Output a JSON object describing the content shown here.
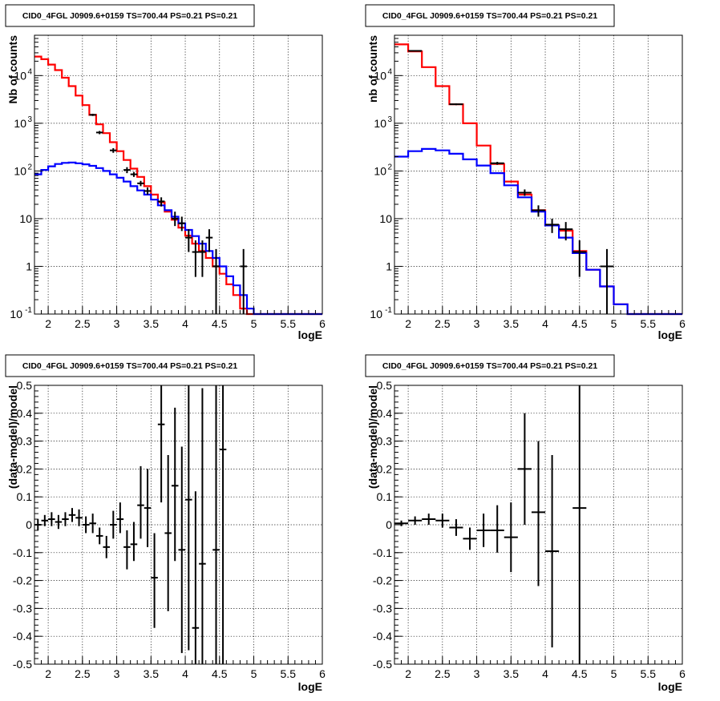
{
  "chart_data": [
    {
      "type": "histogram",
      "title": "CID0_4FGL J0909.6+0159 TS=700.44 PS=0.21 PS=0.21",
      "xlabel": "logE",
      "ylabel": "Nb of counts",
      "xlim": [
        1.8,
        6.0
      ],
      "ylim": [
        0.1,
        70000
      ],
      "yscale": "log",
      "grid": true,
      "x_ticks": [
        "2",
        "2.5",
        "3",
        "3.5",
        "4",
        "4.5",
        "5",
        "5.5",
        "6"
      ],
      "y_ticks": [
        "10^-1",
        "1",
        "10",
        "10^2",
        "10^3",
        "10^4"
      ],
      "bin_edges": [
        1.8,
        1.9,
        2.0,
        2.1,
        2.2,
        2.3,
        2.4,
        2.5,
        2.6,
        2.7,
        2.8,
        2.9,
        3.0,
        3.1,
        3.2,
        3.3,
        3.4,
        3.5,
        3.6,
        3.7,
        3.8,
        3.9,
        4.0,
        4.1,
        4.2,
        4.3,
        4.4,
        4.5,
        4.6,
        4.7,
        4.8,
        4.9,
        5.0,
        5.1,
        5.2,
        5.3,
        5.4,
        5.5,
        5.6,
        5.7,
        5.8,
        5.9,
        6.0
      ],
      "series": [
        {
          "color": "#ff0000",
          "values": [
            25000,
            22000,
            17000,
            13000,
            9000,
            6000,
            3800,
            2400,
            1500,
            950,
            620,
            400,
            260,
            170,
            112,
            75,
            48,
            32,
            22,
            14,
            9.5,
            6.5,
            4.4,
            3.0,
            2.1,
            1.5,
            1.0,
            0.7,
            0.42,
            0.25,
            0.13,
            0.1,
            0.1,
            0.1,
            0.1,
            0.1,
            0.1,
            0.1,
            0.1,
            0.1,
            0.1,
            0.1
          ]
        },
        {
          "color": "#0000ff",
          "values": [
            85,
            105,
            125,
            140,
            148,
            150,
            145,
            138,
            128,
            115,
            100,
            85,
            72,
            60,
            48,
            39,
            32,
            25,
            19,
            15,
            11,
            8,
            5.8,
            4.3,
            3.0,
            2.1,
            1.5,
            1.0,
            0.62,
            0.4,
            0.25,
            0.13,
            0.1,
            0.1,
            0.1,
            0.1,
            0.1,
            0.1,
            0.1,
            0.1,
            0.1,
            0.1
          ]
        }
      ],
      "data_points": [
        {
          "x": 2.65,
          "y": 1500,
          "ylo": 1420,
          "yhi": 1580
        },
        {
          "x": 2.75,
          "y": 640,
          "ylo": 590,
          "yhi": 690
        },
        {
          "x": 2.95,
          "y": 270,
          "ylo": 240,
          "yhi": 300
        },
        {
          "x": 3.15,
          "y": 105,
          "ylo": 90,
          "yhi": 120
        },
        {
          "x": 3.25,
          "y": 85,
          "ylo": 75,
          "yhi": 95
        },
        {
          "x": 3.35,
          "y": 55,
          "ylo": 48,
          "yhi": 62
        },
        {
          "x": 3.45,
          "y": 38,
          "ylo": 32,
          "yhi": 45
        },
        {
          "x": 3.65,
          "y": 23,
          "ylo": 18,
          "yhi": 28
        },
        {
          "x": 3.85,
          "y": 10,
          "ylo": 7,
          "yhi": 14
        },
        {
          "x": 3.95,
          "y": 8,
          "ylo": 5.5,
          "yhi": 11
        },
        {
          "x": 4.05,
          "y": 4,
          "ylo": 2,
          "yhi": 6
        },
        {
          "x": 4.15,
          "y": 2,
          "ylo": 0.6,
          "yhi": 3.5
        },
        {
          "x": 4.25,
          "y": 2,
          "ylo": 0.6,
          "yhi": 3.5
        },
        {
          "x": 4.35,
          "y": 4,
          "ylo": 2,
          "yhi": 6
        },
        {
          "x": 4.45,
          "y": 1,
          "ylo": 0.1,
          "yhi": 2.3
        },
        {
          "x": 4.85,
          "y": 1,
          "ylo": 0.1,
          "yhi": 2.3
        }
      ]
    },
    {
      "type": "histogram",
      "title": "CID0_4FGL J0909.6+0159 TS=700.44 PS=0.21 PS=0.21",
      "xlabel": "logE",
      "ylabel": "nb of counts",
      "xlim": [
        1.8,
        6.0
      ],
      "ylim": [
        0.1,
        70000
      ],
      "yscale": "log",
      "grid": true,
      "x_ticks": [
        "2",
        "2.5",
        "3",
        "3.5",
        "4",
        "4.5",
        "5",
        "5.5",
        "6"
      ],
      "y_ticks": [
        "10^-1",
        "1",
        "10",
        "10^2",
        "10^3",
        "10^4"
      ],
      "bin_edges": [
        1.8,
        2.0,
        2.2,
        2.4,
        2.6,
        2.8,
        3.0,
        3.2,
        3.4,
        3.6,
        3.8,
        4.0,
        4.2,
        4.4,
        4.6,
        4.8,
        5.0,
        5.2,
        5.4,
        5.6,
        5.8,
        6.0
      ],
      "series": [
        {
          "color": "#ff0000",
          "values": [
            45000,
            32000,
            15000,
            6000,
            2500,
            1000,
            340,
            140,
            60,
            32,
            15,
            7.2,
            5.6,
            2.1,
            0.85,
            0.38,
            0.16,
            0.1,
            0.1,
            0.1,
            0.1
          ]
        },
        {
          "color": "#0000ff",
          "values": [
            200,
            260,
            290,
            270,
            230,
            175,
            130,
            90,
            50,
            28,
            14,
            7.2,
            4.0,
            1.9,
            0.85,
            0.38,
            0.16,
            0.1,
            0.1,
            0.1,
            0.1
          ]
        }
      ],
      "data_points": [
        {
          "x": 2.1,
          "y": 33000,
          "ylo": 32500,
          "yhi": 33500
        },
        {
          "x": 2.7,
          "y": 2500,
          "ylo": 2400,
          "yhi": 2600
        },
        {
          "x": 3.3,
          "y": 145,
          "ylo": 135,
          "yhi": 155
        },
        {
          "x": 3.7,
          "y": 35,
          "ylo": 30,
          "yhi": 41
        },
        {
          "x": 3.9,
          "y": 15,
          "ylo": 11,
          "yhi": 19
        },
        {
          "x": 4.1,
          "y": 7.5,
          "ylo": 5,
          "yhi": 10
        },
        {
          "x": 4.3,
          "y": 6,
          "ylo": 3.5,
          "yhi": 8.5
        },
        {
          "x": 4.5,
          "y": 2,
          "ylo": 0.6,
          "yhi": 3.5
        },
        {
          "x": 4.9,
          "y": 1,
          "ylo": 0.1,
          "yhi": 2.3
        }
      ]
    },
    {
      "type": "scatter",
      "title": "CID0_4FGL J0909.6+0159 TS=700.44 PS=0.21 PS=0.21",
      "xlabel": "logE",
      "ylabel": "(data-model)/model",
      "xlim": [
        1.8,
        6.0
      ],
      "ylim": [
        -0.5,
        0.5
      ],
      "grid": true,
      "x_ticks": [
        "2",
        "2.5",
        "3",
        "3.5",
        "4",
        "4.5",
        "5",
        "5.5",
        "6"
      ],
      "y_ticks": [
        "-0.5",
        "-0.4",
        "-0.3",
        "-0.2",
        "-0.1",
        "0",
        "0.1",
        "0.2",
        "0.3",
        "0.4",
        "0.5"
      ],
      "x_halfwidth": 0.05,
      "data_points": [
        {
          "x": 1.85,
          "y": 0.0,
          "ylo": -0.02,
          "yhi": 0.02
        },
        {
          "x": 1.95,
          "y": 0.015,
          "ylo": -0.005,
          "yhi": 0.035
        },
        {
          "x": 2.05,
          "y": 0.02,
          "ylo": -0.005,
          "yhi": 0.045
        },
        {
          "x": 2.15,
          "y": 0.01,
          "ylo": -0.015,
          "yhi": 0.035
        },
        {
          "x": 2.25,
          "y": 0.02,
          "ylo": -0.005,
          "yhi": 0.045
        },
        {
          "x": 2.35,
          "y": 0.035,
          "ylo": 0.01,
          "yhi": 0.06
        },
        {
          "x": 2.45,
          "y": 0.025,
          "ylo": -0.005,
          "yhi": 0.055
        },
        {
          "x": 2.55,
          "y": 0.0,
          "ylo": -0.03,
          "yhi": 0.03
        },
        {
          "x": 2.65,
          "y": 0.005,
          "ylo": -0.03,
          "yhi": 0.04
        },
        {
          "x": 2.75,
          "y": -0.04,
          "ylo": -0.07,
          "yhi": -0.01
        },
        {
          "x": 2.85,
          "y": -0.08,
          "ylo": -0.12,
          "yhi": -0.04
        },
        {
          "x": 2.95,
          "y": 0.0,
          "ylo": -0.05,
          "yhi": 0.05
        },
        {
          "x": 3.05,
          "y": 0.02,
          "ylo": -0.03,
          "yhi": 0.08
        },
        {
          "x": 3.15,
          "y": -0.08,
          "ylo": -0.16,
          "yhi": -0.02
        },
        {
          "x": 3.25,
          "y": -0.07,
          "ylo": -0.13,
          "yhi": 0.01
        },
        {
          "x": 3.35,
          "y": 0.07,
          "ylo": -0.05,
          "yhi": 0.21
        },
        {
          "x": 3.45,
          "y": 0.06,
          "ylo": -0.08,
          "yhi": 0.2
        },
        {
          "x": 3.55,
          "y": -0.19,
          "ylo": -0.37,
          "yhi": -0.03
        },
        {
          "x": 3.65,
          "y": 0.36,
          "ylo": 0.08,
          "yhi": 0.5
        },
        {
          "x": 3.75,
          "y": -0.03,
          "ylo": -0.31,
          "yhi": 0.25
        },
        {
          "x": 3.85,
          "y": 0.14,
          "ylo": -0.13,
          "yhi": 0.42
        },
        {
          "x": 3.95,
          "y": -0.09,
          "ylo": -0.46,
          "yhi": 0.28
        },
        {
          "x": 4.05,
          "y": 0.09,
          "ylo": -0.45,
          "yhi": 0.5
        },
        {
          "x": 4.15,
          "y": -0.37,
          "ylo": -0.5,
          "yhi": 0.12
        },
        {
          "x": 4.25,
          "y": -0.14,
          "ylo": -0.5,
          "yhi": 0.49
        },
        {
          "x": 4.45,
          "y": -0.09,
          "ylo": -0.5,
          "yhi": 0.5
        },
        {
          "x": 4.55,
          "y": 0.27,
          "ylo": -0.5,
          "yhi": 0.5
        }
      ]
    },
    {
      "type": "scatter",
      "title": "CID0_4FGL J0909.6+0159 TS=700.44 PS=0.21 PS=0.21",
      "xlabel": "logE",
      "ylabel": "(data-model)/model",
      "xlim": [
        1.8,
        6.0
      ],
      "ylim": [
        -0.5,
        0.5
      ],
      "grid": true,
      "x_ticks": [
        "2",
        "2.5",
        "3",
        "3.5",
        "4",
        "4.5",
        "5",
        "5.5",
        "6"
      ],
      "y_ticks": [
        "-0.5",
        "-0.4",
        "-0.3",
        "-0.2",
        "-0.1",
        "0",
        "0.1",
        "0.2",
        "0.3",
        "0.4",
        "0.5"
      ],
      "x_halfwidth": 0.1,
      "data_points": [
        {
          "x": 1.9,
          "y": 0.005,
          "ylo": -0.005,
          "yhi": 0.015
        },
        {
          "x": 2.1,
          "y": 0.015,
          "ylo": 0.0,
          "yhi": 0.03
        },
        {
          "x": 2.3,
          "y": 0.02,
          "ylo": 0.0,
          "yhi": 0.04
        },
        {
          "x": 2.5,
          "y": 0.015,
          "ylo": -0.01,
          "yhi": 0.04
        },
        {
          "x": 2.7,
          "y": -0.01,
          "ylo": -0.04,
          "yhi": 0.02
        },
        {
          "x": 2.9,
          "y": -0.05,
          "ylo": -0.09,
          "yhi": -0.01
        },
        {
          "x": 3.1,
          "y": -0.02,
          "ylo": -0.08,
          "yhi": 0.04
        },
        {
          "x": 3.3,
          "y": -0.02,
          "ylo": -0.1,
          "yhi": 0.07
        },
        {
          "x": 3.5,
          "y": -0.045,
          "ylo": -0.17,
          "yhi": 0.08
        },
        {
          "x": 3.7,
          "y": 0.2,
          "ylo": 0.0,
          "yhi": 0.4
        },
        {
          "x": 3.9,
          "y": 0.045,
          "ylo": -0.22,
          "yhi": 0.3
        },
        {
          "x": 4.1,
          "y": -0.095,
          "ylo": -0.44,
          "yhi": 0.25
        },
        {
          "x": 4.5,
          "y": 0.06,
          "ylo": -0.5,
          "yhi": 0.5
        }
      ]
    }
  ]
}
